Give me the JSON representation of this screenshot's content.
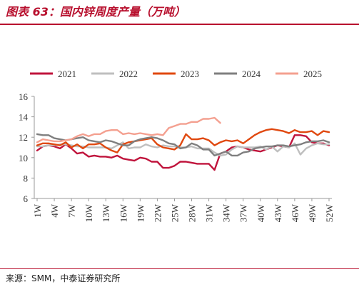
{
  "header": {
    "title": "图表 63：国内锌周度产量（万吨）"
  },
  "footer": {
    "source": "来源：SMM，中泰证券研究所"
  },
  "chart_data": {
    "type": "line",
    "title": "",
    "xlabel": "",
    "ylabel": "",
    "ylim": [
      6,
      16
    ],
    "yticks": [
      6,
      8,
      10,
      12,
      14,
      16
    ],
    "x_tick_labels": [
      "1W",
      "4W",
      "7W",
      "10W",
      "13W",
      "16W",
      "19W",
      "22W",
      "25W",
      "28W",
      "31W",
      "34W",
      "37W",
      "40W",
      "43W",
      "46W",
      "49W",
      "52W"
    ],
    "legend_position": "top",
    "grid": false,
    "series": [
      {
        "name": "2021",
        "color": "#c0143c",
        "values": [
          10.7,
          11.1,
          11.2,
          11.1,
          10.9,
          11.3,
          10.9,
          10.4,
          10.5,
          10.1,
          10.2,
          10.1,
          10.1,
          10.0,
          10.2,
          9.9,
          9.8,
          9.7,
          10.0,
          9.9,
          9.6,
          9.6,
          9.0,
          9.0,
          9.2,
          9.6,
          9.6,
          9.5,
          9.4,
          9.4,
          9.4,
          8.8,
          10.4,
          10.6,
          11.0,
          11.1,
          11.0,
          10.8,
          10.7,
          10.6,
          10.8,
          11.0,
          11.2,
          11.1,
          11.0,
          12.2,
          12.2,
          12.1,
          11.5,
          11.4,
          11.4,
          11.2
        ]
      },
      {
        "name": "2022",
        "color": "#bfbfbf",
        "values": [
          11.1,
          11.1,
          11.2,
          11.2,
          11.3,
          11.3,
          11.2,
          11.1,
          11.1,
          11.0,
          11.0,
          11.0,
          11.0,
          10.9,
          11.2,
          11.5,
          10.9,
          11.0,
          11.0,
          11.3,
          11.1,
          11.0,
          11.2,
          11.1,
          11.1,
          11.0,
          11.0,
          11.1,
          10.9,
          10.9,
          10.9,
          10.5,
          10.2,
          10.3,
          10.8,
          11.1,
          11.0,
          11.0,
          11.0,
          11.1,
          10.8,
          11.1,
          10.6,
          11.1,
          11.0,
          11.4,
          10.3,
          10.9,
          11.2,
          11.4,
          11.3,
          11.3
        ]
      },
      {
        "name": "2023",
        "color": "#e0480f",
        "values": [
          11.2,
          11.4,
          11.4,
          11.3,
          11.2,
          11.5,
          11.0,
          11.3,
          10.9,
          11.3,
          11.3,
          11.4,
          11.0,
          10.7,
          10.5,
          11.3,
          11.5,
          11.6,
          11.7,
          11.8,
          11.9,
          11.3,
          11.0,
          10.9,
          10.8,
          11.2,
          12.3,
          11.8,
          11.8,
          11.9,
          11.7,
          11.2,
          11.5,
          11.7,
          11.6,
          11.7,
          11.4,
          11.8,
          12.2,
          12.5,
          12.7,
          12.8,
          12.7,
          12.6,
          12.4,
          12.7,
          12.5,
          12.5,
          12.6,
          12.2,
          12.6,
          12.5
        ]
      },
      {
        "name": "2024",
        "color": "#7f7f7f",
        "values": [
          12.3,
          12.2,
          12.2,
          11.9,
          11.8,
          11.7,
          11.8,
          11.9,
          12.0,
          11.7,
          11.6,
          11.5,
          11.7,
          11.6,
          11.4,
          11.2,
          11.2,
          11.6,
          11.8,
          11.9,
          12.0,
          11.9,
          11.7,
          11.4,
          11.3,
          10.9,
          11.0,
          11.4,
          11.2,
          10.8,
          10.8,
          10.2,
          10.4,
          10.6,
          10.2,
          10.2,
          10.5,
          10.6,
          10.9,
          11.0,
          11.1,
          11.1,
          11.2,
          11.2,
          11.1,
          11.2,
          11.3,
          11.5,
          11.6,
          11.6,
          11.7,
          11.5
        ]
      },
      {
        "name": "2025",
        "color": "#f4a090",
        "values": [
          11.5,
          11.8,
          11.7,
          11.6,
          11.6,
          11.7,
          11.8,
          12.1,
          12.3,
          12.1,
          12.3,
          12.3,
          12.6,
          12.7,
          12.7,
          12.3,
          12.4,
          12.3,
          12.4,
          12.3,
          12.2,
          12.3,
          12.2,
          12.9,
          13.1,
          13.3,
          13.3,
          13.5,
          13.5,
          13.8,
          13.8,
          13.9,
          13.4
        ]
      }
    ]
  }
}
